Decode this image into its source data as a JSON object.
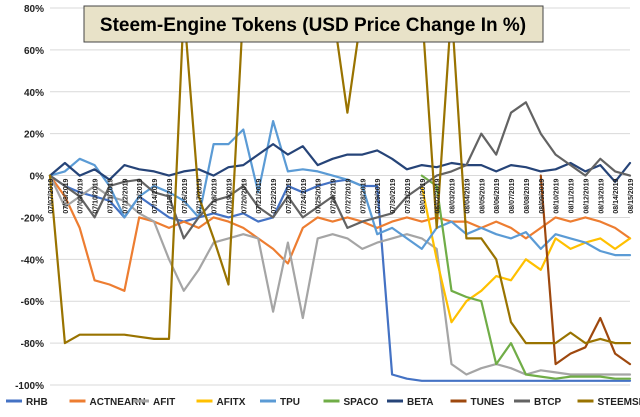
{
  "chart_data": {
    "type": "line",
    "title": "Steem-Engine Tokens (USD Price Change In %)",
    "xlabel": "",
    "ylabel": "",
    "ylim": [
      -100,
      80
    ],
    "yticks": [
      80,
      60,
      40,
      20,
      0,
      -20,
      -40,
      -60,
      -80,
      -100
    ],
    "ytick_labels": [
      "80%",
      "60%",
      "40%",
      "20%",
      "0%",
      "-20%",
      "-40%",
      "-60%",
      "-80%",
      "-100%"
    ],
    "categories": [
      "07/07/2019",
      "07/08/2019",
      "07/09/2019",
      "07/10/2019",
      "07/11/2019",
      "07/12/2019",
      "07/13/2019",
      "07/14/2019",
      "07/15/2019",
      "07/16/2019",
      "07/17/2019",
      "07/18/2019",
      "07/19/2019",
      "07/20/2019",
      "07/21/2019",
      "07/22/2019",
      "07/23/2019",
      "07/24/2019",
      "07/25/2019",
      "07/26/2019",
      "07/27/2019",
      "07/28/2019",
      "07/29/2019",
      "07/30/2019",
      "07/31/2019",
      "08/01/2019",
      "08/02/2019",
      "08/03/2019",
      "08/04/2019",
      "08/05/2019",
      "08/06/2019",
      "08/07/2019",
      "08/08/2019",
      "08/09/2019",
      "08/10/2019",
      "08/11/2019",
      "08/12/2019",
      "08/13/2019",
      "08/14/2019",
      "08/15/2019"
    ],
    "grid": true,
    "legend_position": "bottom",
    "series": [
      {
        "name": "RHB",
        "color": "#4472C4",
        "values": [
          0,
          -5,
          -8,
          -10,
          -12,
          -20,
          -10,
          -15,
          -20,
          -22,
          -20,
          -18,
          -20,
          -18,
          -22,
          -20,
          -5,
          -8,
          -5,
          -3,
          -2,
          -5,
          -5,
          -95,
          -97,
          -98,
          -98,
          -98,
          -98,
          -98,
          -98,
          -98,
          -98,
          -98,
          -98,
          -98,
          -98,
          -98,
          -98,
          -98
        ]
      },
      {
        "name": "ACTNEARN",
        "color": "#ED7D31",
        "values": [
          0,
          -10,
          -25,
          -50,
          -52,
          -55,
          -20,
          -22,
          -25,
          -22,
          -25,
          -20,
          -22,
          -25,
          -30,
          -35,
          -42,
          -25,
          -20,
          -22,
          -20,
          -22,
          -25,
          -22,
          -20,
          -22,
          -20,
          -22,
          -22,
          -25,
          -22,
          -25,
          -30,
          -25,
          -20,
          -22,
          -20,
          -22,
          -25,
          -30
        ]
      },
      {
        "name": "AFIT",
        "color": "#A5A5A5",
        "values": [
          0,
          -15,
          -10,
          -5,
          -10,
          -12,
          -18,
          -22,
          -40,
          -55,
          -45,
          -32,
          -30,
          -28,
          -30,
          -65,
          -32,
          -68,
          -30,
          -28,
          -30,
          -35,
          -32,
          -30,
          -28,
          -30,
          -35,
          -90,
          -95,
          -92,
          -90,
          -92,
          -95,
          -93,
          -94,
          -95,
          -95,
          -95,
          -95,
          -95
        ]
      },
      {
        "name": "AFITX",
        "color": "#FFC000",
        "values": [
          null,
          null,
          null,
          null,
          null,
          null,
          null,
          null,
          null,
          null,
          null,
          null,
          null,
          null,
          null,
          null,
          null,
          null,
          null,
          null,
          null,
          null,
          null,
          null,
          null,
          -5,
          -40,
          -70,
          -60,
          -55,
          -48,
          -50,
          -40,
          -45,
          -30,
          -35,
          -32,
          -30,
          -35,
          -30
        ]
      },
      {
        "name": "TPU",
        "color": "#5B9BD5",
        "values": [
          0,
          2,
          8,
          5,
          -5,
          -20,
          -10,
          -5,
          -8,
          -12,
          -20,
          15,
          15,
          22,
          -8,
          26,
          2,
          3,
          2,
          0,
          -2,
          -5,
          -28,
          -25,
          -30,
          -35,
          -25,
          -22,
          -28,
          -25,
          -28,
          -30,
          -27,
          -35,
          -28,
          -30,
          -32,
          -36,
          -38,
          -38
        ]
      },
      {
        "name": "SPACO",
        "color": "#70AD47",
        "values": [
          null,
          null,
          null,
          null,
          null,
          null,
          null,
          null,
          null,
          null,
          null,
          null,
          null,
          null,
          null,
          null,
          null,
          null,
          null,
          null,
          null,
          null,
          null,
          null,
          null,
          0,
          -5,
          -55,
          -58,
          -60,
          -90,
          -80,
          -95,
          -96,
          -97,
          -96,
          -96,
          -96,
          -97,
          -97
        ]
      },
      {
        "name": "BETA",
        "color": "#264478",
        "values": [
          0,
          6,
          0,
          3,
          -2,
          5,
          3,
          2,
          0,
          2,
          3,
          0,
          4,
          5,
          10,
          15,
          10,
          14,
          5,
          8,
          10,
          10,
          12,
          8,
          3,
          5,
          4,
          6,
          5,
          5,
          2,
          5,
          4,
          2,
          3,
          6,
          2,
          5,
          -3,
          6
        ]
      },
      {
        "name": "TUNES",
        "color": "#9E480E",
        "values": [
          null,
          null,
          null,
          null,
          null,
          null,
          null,
          null,
          null,
          null,
          null,
          null,
          null,
          null,
          null,
          null,
          null,
          null,
          null,
          null,
          null,
          null,
          null,
          null,
          null,
          null,
          null,
          null,
          null,
          null,
          null,
          null,
          null,
          0,
          -90,
          -85,
          -82,
          -68,
          -85,
          -90
        ]
      },
      {
        "name": "BTCP",
        "color": "#636363",
        "values": [
          0,
          -5,
          -10,
          -20,
          -5,
          -3,
          -2,
          -8,
          -10,
          -30,
          -20,
          -12,
          -10,
          -5,
          -15,
          -20,
          -10,
          -20,
          -15,
          -10,
          -25,
          -22,
          -20,
          -18,
          -10,
          -5,
          0,
          2,
          5,
          20,
          10,
          30,
          35,
          20,
          10,
          5,
          0,
          8,
          2,
          0
        ]
      },
      {
        "name": "STEEMSPEAK",
        "color": "#997300",
        "values": [
          0,
          -80,
          -76,
          -76,
          -76,
          -76,
          -77,
          -78,
          -78,
          80,
          -10,
          -30,
          -52,
          80,
          80,
          80,
          80,
          80,
          80,
          80,
          30,
          80,
          80,
          80,
          80,
          80,
          -25,
          80,
          -30,
          -30,
          -40,
          -70,
          -80,
          -80,
          -80,
          -75,
          -80,
          -78,
          -80,
          -80
        ]
      }
    ]
  }
}
